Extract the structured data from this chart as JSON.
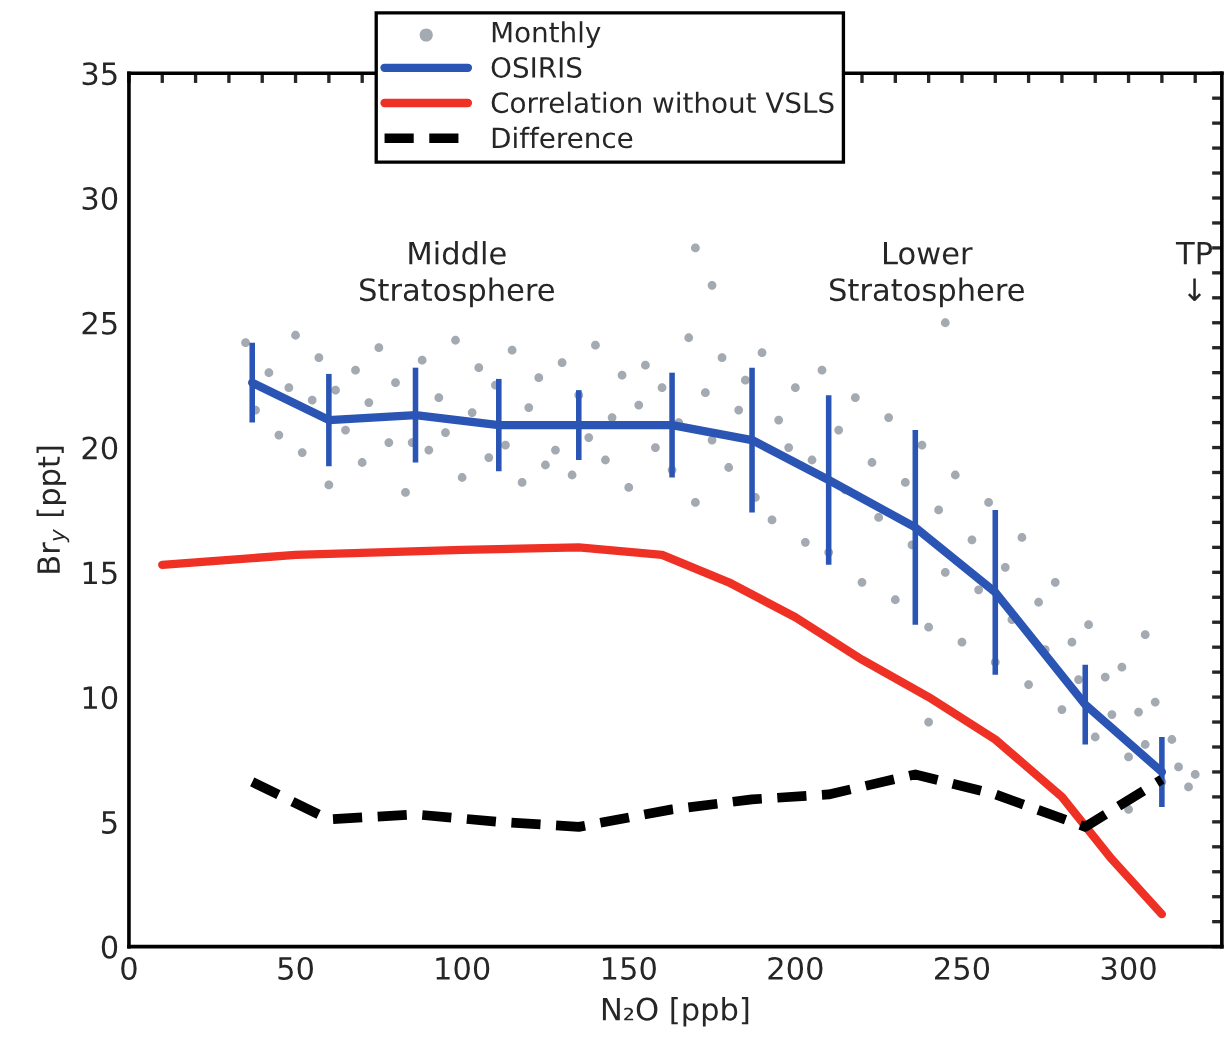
{
  "chart_data": {
    "type": "line",
    "xlabel": "N₂O [ppb]",
    "ylabel": "Br$_{y}$ [ppt]",
    "xlim": [
      0,
      328
    ],
    "ylim": [
      0,
      35
    ],
    "xticks": [
      0,
      {
        "value": 10,
        "label": null
      },
      {
        "value": 20,
        "label": null
      },
      {
        "value": 30,
        "label": null
      },
      {
        "value": 40,
        "label": null
      },
      50,
      {
        "value": 60,
        "label": null
      },
      {
        "value": 70,
        "label": null
      },
      {
        "value": 80,
        "label": null
      },
      {
        "value": 90,
        "label": null
      },
      100,
      {
        "value": 110,
        "label": null
      },
      {
        "value": 120,
        "label": null
      },
      {
        "value": 130,
        "label": null
      },
      {
        "value": 140,
        "label": null
      },
      150,
      {
        "value": 160,
        "label": null
      },
      {
        "value": 170,
        "label": null
      },
      {
        "value": 180,
        "label": null
      },
      {
        "value": 190,
        "label": null
      },
      200,
      {
        "value": 210,
        "label": null
      },
      {
        "value": 220,
        "label": null
      },
      {
        "value": 230,
        "label": null
      },
      {
        "value": 240,
        "label": null
      },
      250,
      {
        "value": 260,
        "label": null
      },
      {
        "value": 270,
        "label": null
      },
      {
        "value": 280,
        "label": null
      },
      {
        "value": 290,
        "label": null
      },
      300,
      {
        "value": 310,
        "label": null
      },
      {
        "value": 320,
        "label": null
      }
    ],
    "yticks": [
      0,
      {
        "value": 1,
        "label": null
      },
      {
        "value": 2,
        "label": null
      },
      {
        "value": 3,
        "label": null
      },
      {
        "value": 4,
        "label": null
      },
      5,
      {
        "value": 6,
        "label": null
      },
      {
        "value": 7,
        "label": null
      },
      {
        "value": 8,
        "label": null
      },
      {
        "value": 9,
        "label": null
      },
      10,
      {
        "value": 11,
        "label": null
      },
      {
        "value": 12,
        "label": null
      },
      {
        "value": 13,
        "label": null
      },
      {
        "value": 14,
        "label": null
      },
      15,
      {
        "value": 16,
        "label": null
      },
      {
        "value": 17,
        "label": null
      },
      {
        "value": 18,
        "label": null
      },
      {
        "value": 19,
        "label": null
      },
      20,
      {
        "value": 21,
        "label": null
      },
      {
        "value": 22,
        "label": null
      },
      {
        "value": 23,
        "label": null
      },
      {
        "value": 24,
        "label": null
      },
      25,
      {
        "value": 26,
        "label": null
      },
      {
        "value": 27,
        "label": null
      },
      {
        "value": 28,
        "label": null
      },
      {
        "value": 29,
        "label": null
      },
      30,
      {
        "value": 31,
        "label": null
      },
      {
        "value": 32,
        "label": null
      },
      {
        "value": 33,
        "label": null
      },
      {
        "value": 34,
        "label": null
      },
      35
    ],
    "grid": false,
    "legend": "top",
    "annotations": [
      "Middle\nStratosphere",
      "Lower\nStratosphere",
      "TP\n↓"
    ],
    "series": [
      {
        "name": "Monthly",
        "type": "scatter",
        "marker": "circle",
        "color": "#a3aab2",
        "x": [
          35,
          38,
          42,
          45,
          48,
          50,
          52,
          55,
          57,
          60,
          62,
          65,
          68,
          70,
          72,
          75,
          78,
          80,
          83,
          85,
          88,
          90,
          93,
          95,
          98,
          100,
          103,
          105,
          108,
          110,
          113,
          115,
          118,
          120,
          123,
          125,
          128,
          130,
          133,
          135,
          138,
          140,
          143,
          145,
          148,
          150,
          153,
          155,
          158,
          160,
          163,
          165,
          168,
          170,
          173,
          175,
          178,
          180,
          183,
          185,
          188,
          190,
          193,
          195,
          198,
          200,
          203,
          205,
          208,
          210,
          213,
          215,
          218,
          220,
          223,
          225,
          228,
          230,
          233,
          235,
          238,
          240,
          243,
          245,
          248,
          250,
          253,
          255,
          258,
          260,
          263,
          265,
          268,
          270,
          273,
          275,
          278,
          280,
          283,
          285,
          288,
          290,
          293,
          295,
          298,
          300,
          303,
          305,
          308,
          310,
          313,
          315,
          318,
          320,
          170,
          175,
          240,
          245,
          300,
          305
        ],
        "values": [
          24.2,
          21.5,
          23.0,
          20.5,
          22.4,
          24.5,
          19.8,
          21.9,
          23.6,
          18.5,
          22.3,
          20.7,
          23.1,
          19.4,
          21.8,
          24.0,
          20.2,
          22.6,
          18.2,
          20.2,
          23.5,
          19.9,
          22.0,
          20.6,
          24.3,
          18.8,
          21.4,
          23.2,
          19.6,
          22.5,
          20.1,
          23.9,
          18.6,
          21.6,
          22.8,
          19.3,
          19.9,
          23.4,
          18.9,
          22.1,
          20.4,
          24.1,
          19.5,
          21.2,
          22.9,
          18.4,
          21.7,
          23.3,
          20.0,
          22.4,
          19.1,
          21.0,
          24.4,
          17.8,
          22.2,
          20.3,
          23.6,
          19.2,
          21.5,
          22.7,
          18.0,
          23.8,
          17.1,
          21.1,
          20.0,
          22.4,
          16.2,
          19.5,
          23.1,
          15.8,
          20.7,
          18.3,
          22.0,
          14.6,
          19.4,
          17.2,
          21.2,
          13.9,
          18.6,
          16.1,
          20.1,
          12.8,
          17.5,
          15.0,
          18.9,
          12.2,
          16.3,
          14.3,
          17.8,
          11.4,
          15.2,
          13.1,
          16.4,
          10.5,
          13.8,
          11.9,
          14.6,
          9.5,
          12.2,
          10.7,
          12.9,
          8.4,
          10.8,
          9.3,
          11.2,
          7.6,
          9.4,
          8.1,
          9.8,
          6.6,
          8.3,
          7.2,
          6.4,
          6.9,
          28.0,
          26.5,
          9.0,
          25.0,
          5.5,
          12.5
        ]
      },
      {
        "name": "OSIRIS",
        "color": "#2b55b4",
        "x": [
          37,
          60,
          86,
          111,
          135,
          163,
          187,
          210,
          236,
          260,
          287,
          310
        ],
        "values": [
          22.6,
          21.1,
          21.3,
          20.9,
          20.9,
          20.9,
          20.3,
          18.7,
          16.8,
          14.2,
          9.7,
          7.0
        ],
        "errors": [
          1.6,
          1.85,
          1.9,
          1.85,
          1.4,
          2.1,
          2.9,
          3.4,
          3.9,
          3.3,
          1.6,
          1.4
        ]
      },
      {
        "name": "Correlation without VSLS",
        "color": "#ee3124",
        "x": [
          10,
          50,
          100,
          135,
          160,
          180,
          200,
          220,
          240,
          260,
          280,
          295,
          310
        ],
        "values": [
          15.3,
          15.7,
          15.9,
          16.0,
          15.7,
          14.6,
          13.2,
          11.5,
          10.0,
          8.3,
          6.0,
          3.5,
          1.3
        ]
      },
      {
        "name": "Difference",
        "color": "#000000",
        "line_style": "dashed",
        "x": [
          37,
          60,
          86,
          111,
          135,
          163,
          187,
          210,
          236,
          260,
          287,
          310
        ],
        "values": [
          6.6,
          5.1,
          5.3,
          5.0,
          4.8,
          5.5,
          5.9,
          6.1,
          6.9,
          6.1,
          4.8,
          6.7
        ]
      }
    ]
  }
}
